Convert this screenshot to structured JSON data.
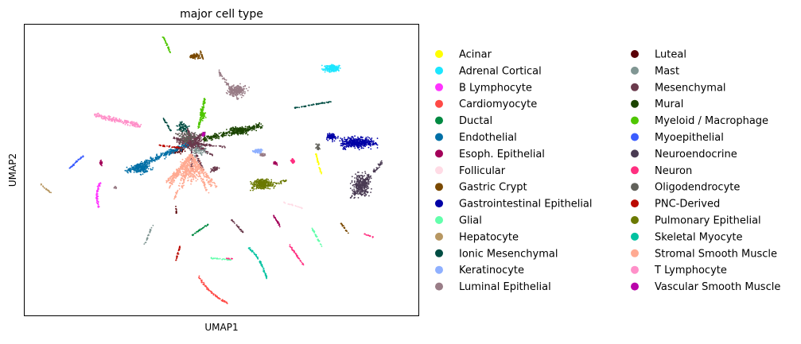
{
  "chart_data": {
    "type": "scatter",
    "title": "major cell type",
    "xlabel": "UMAP1",
    "ylabel": "UMAP2",
    "xticks": false,
    "yticks": false,
    "grid": false,
    "legend_placement": "outside-right",
    "legend_columns": 2,
    "series": [
      {
        "name": "Acinar",
        "color": "#ffff00"
      },
      {
        "name": "Adrenal Cortical",
        "color": "#1ce6ff"
      },
      {
        "name": "B Lymphocyte",
        "color": "#ff34ff"
      },
      {
        "name": "Cardiomyocyte",
        "color": "#ff4a46"
      },
      {
        "name": "Ductal",
        "color": "#008941"
      },
      {
        "name": "Endothelial",
        "color": "#006fa6"
      },
      {
        "name": "Esoph. Epithelial",
        "color": "#a30059"
      },
      {
        "name": "Follicular",
        "color": "#ffdbe5"
      },
      {
        "name": "Gastric Crypt",
        "color": "#7a4900"
      },
      {
        "name": "Gastrointestinal Epithelial",
        "color": "#0000a6"
      },
      {
        "name": "Glial",
        "color": "#63ffac"
      },
      {
        "name": "Hepatocyte",
        "color": "#b79762"
      },
      {
        "name": "Ionic Mesenchymal",
        "color": "#004d43"
      },
      {
        "name": "Keratinocyte",
        "color": "#8fb0ff"
      },
      {
        "name": "Luminal Epithelial",
        "color": "#997d87"
      },
      {
        "name": "Luteal",
        "color": "#5a0007"
      },
      {
        "name": "Mast",
        "color": "#809693"
      },
      {
        "name": "Mesenchymal",
        "color": "#6a3a4c"
      },
      {
        "name": "Mural",
        "color": "#1b4400"
      },
      {
        "name": "Myeloid / Macrophage",
        "color": "#4fc601"
      },
      {
        "name": "Myoepithelial",
        "color": "#3b5dff"
      },
      {
        "name": "Neuroendocrine",
        "color": "#4a3b53"
      },
      {
        "name": "Neuron",
        "color": "#ff2f80"
      },
      {
        "name": "Oligodendrocyte",
        "color": "#61615a"
      },
      {
        "name": "PNC-Derived",
        "color": "#ba0900"
      },
      {
        "name": "Pulmonary Epithelial",
        "color": "#6b7900"
      },
      {
        "name": "Skeletal Myocyte",
        "color": "#00c2a0"
      },
      {
        "name": "Stromal Smooth Muscle",
        "color": "#ffaa92"
      },
      {
        "name": "T Lymphocyte",
        "color": "#ff90c9"
      },
      {
        "name": "Vascular Smooth Muscle",
        "color": "#b903aa"
      }
    ]
  }
}
